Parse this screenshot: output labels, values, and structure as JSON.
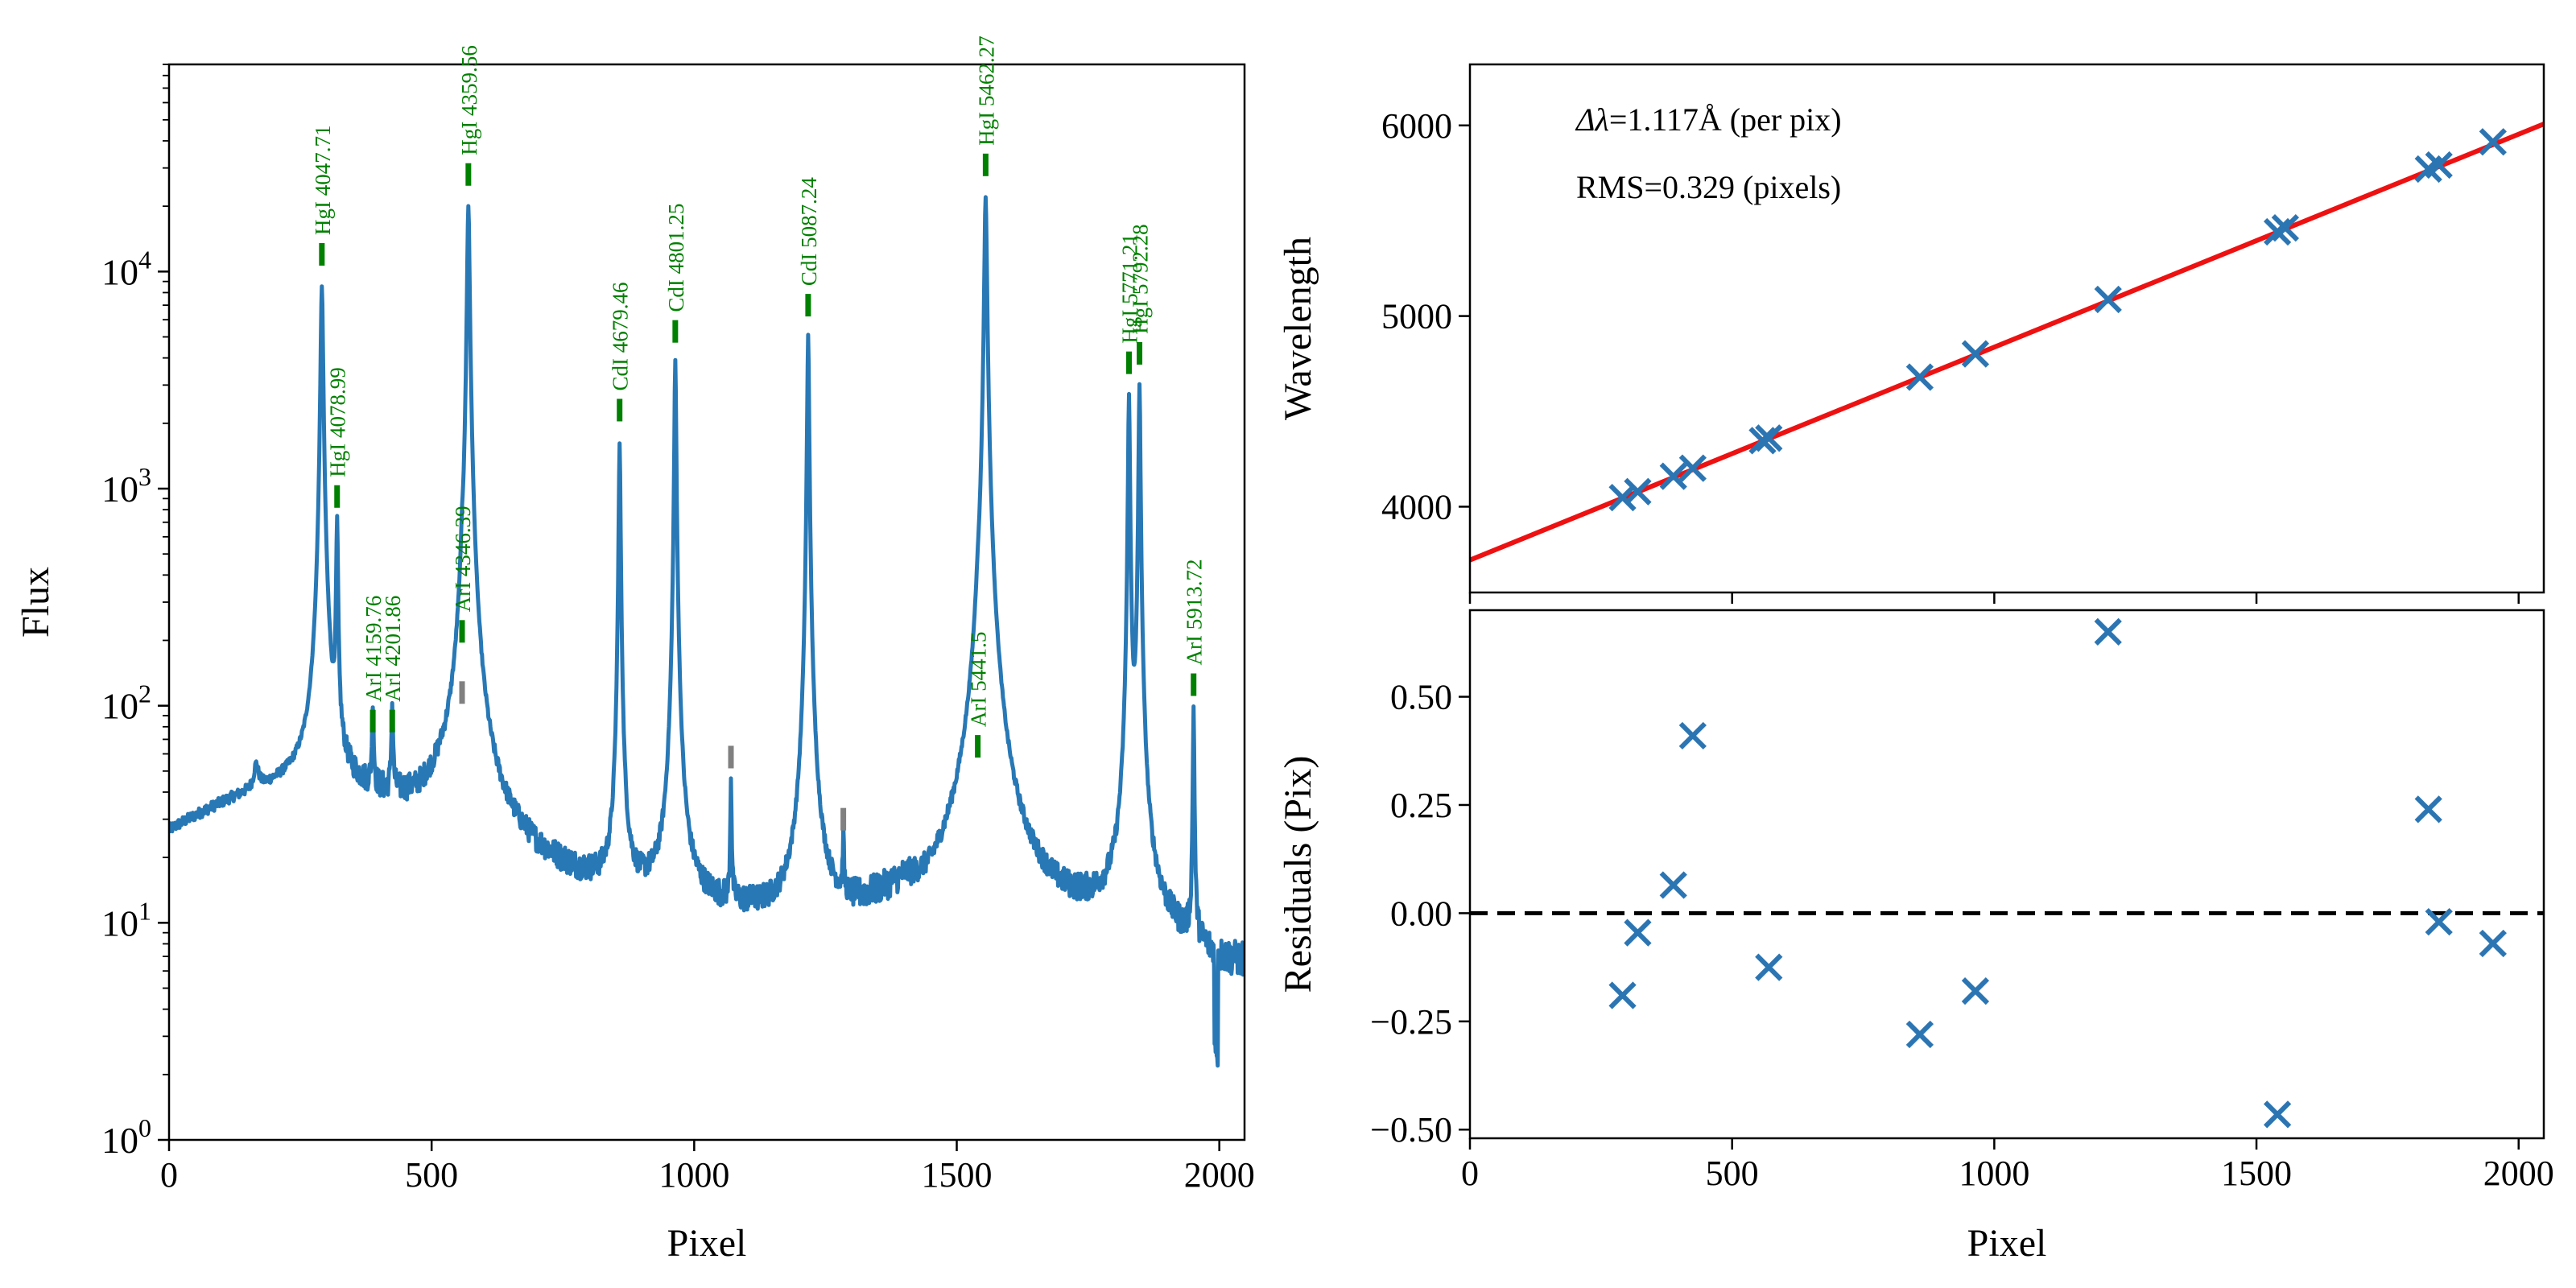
{
  "chart_data": [
    {
      "id": "spectrum",
      "type": "line",
      "xlabel": "Pixel",
      "ylabel": "Flux",
      "xlim": [
        0,
        2048
      ],
      "ylim": [
        1,
        90000
      ],
      "yscale": "log",
      "xticks": [
        0,
        500,
        1000,
        1500,
        2000
      ],
      "yticks": [
        {
          "value": 1,
          "base": "10",
          "exp": "0"
        },
        {
          "value": 10,
          "base": "10",
          "exp": "1"
        },
        {
          "value": 100,
          "base": "10",
          "exp": "2"
        },
        {
          "value": 1000,
          "base": "10",
          "exp": "3"
        },
        {
          "value": 10000,
          "base": "10",
          "exp": "4"
        }
      ],
      "series_color": "#2878b5",
      "continuum": [
        [
          0,
          26
        ],
        [
          60,
          31
        ],
        [
          120,
          36
        ],
        [
          180,
          40
        ],
        [
          240,
          44
        ],
        [
          280,
          46
        ],
        [
          330,
          40
        ],
        [
          400,
          36
        ],
        [
          470,
          33
        ],
        [
          520,
          35
        ],
        [
          600,
          24
        ],
        [
          650,
          21
        ],
        [
          700,
          18
        ],
        [
          780,
          15
        ],
        [
          850,
          13
        ],
        [
          950,
          12
        ],
        [
          1050,
          11
        ],
        [
          1150,
          10
        ],
        [
          1250,
          10
        ],
        [
          1300,
          10
        ],
        [
          1350,
          11
        ],
        [
          1400,
          12
        ],
        [
          1450,
          10
        ],
        [
          1520,
          13
        ],
        [
          1600,
          11
        ],
        [
          1700,
          10
        ],
        [
          1800,
          10
        ],
        [
          1850,
          9
        ],
        [
          1900,
          8
        ],
        [
          2000,
          6
        ],
        [
          2048,
          6
        ]
      ],
      "peaks": [
        {
          "x": 166,
          "peak": 12,
          "w": 5
        },
        {
          "x": 291,
          "peak": 8500,
          "w": 2.2
        },
        {
          "x": 320,
          "peak": 650,
          "w": 1.6
        },
        {
          "x": 388,
          "peak": 60,
          "w": 1.6
        },
        {
          "x": 425,
          "peak": 60,
          "w": 1.6
        },
        {
          "x": 558,
          "peak": 160,
          "w": 2.2
        },
        {
          "x": 570,
          "peak": 20000,
          "w": 2.2
        },
        {
          "x": 858,
          "peak": 1600,
          "w": 1.6
        },
        {
          "x": 964,
          "peak": 3900,
          "w": 1.6
        },
        {
          "x": 1070,
          "peak": 34,
          "w": 1.2
        },
        {
          "x": 1217,
          "peak": 5100,
          "w": 1.6
        },
        {
          "x": 1284,
          "peak": 12,
          "w": 1.2
        },
        {
          "x": 1540,
          "peak": 55,
          "w": 3.5
        },
        {
          "x": 1555,
          "peak": 22000,
          "w": 2.2
        },
        {
          "x": 1828,
          "peak": 2700,
          "w": 1.6
        },
        {
          "x": 1848,
          "peak": 3000,
          "w": 1.6
        },
        {
          "x": 1951,
          "peak": 90,
          "w": 1.3
        }
      ],
      "line_ids": [
        {
          "label": "HgI 4047.71",
          "x": 291,
          "y": 12000
        },
        {
          "label": "HgI 4078.99",
          "x": 320,
          "y": 920
        },
        {
          "label": "ArI 4159.76",
          "x": 388,
          "y": 85
        },
        {
          "label": "ArI 4201.86",
          "x": 425,
          "y": 85
        },
        {
          "label": "ArI 4346.39",
          "x": 558,
          "y": 220
        },
        {
          "label": "HgI 4359.56",
          "x": 570,
          "y": 28000
        },
        {
          "label": "CdI 4679.46",
          "x": 858,
          "y": 2300
        },
        {
          "label": "CdI 4801.25",
          "x": 964,
          "y": 5300
        },
        {
          "label": "CdI 5087.24",
          "x": 1217,
          "y": 7000
        },
        {
          "label": "ArI 5441.5",
          "x": 1540,
          "y": 65
        },
        {
          "label": "HgI 5462.27",
          "x": 1555,
          "y": 31000
        },
        {
          "label": "HgI 5771.21",
          "x": 1828,
          "y": 3800
        },
        {
          "label": "HgI 5792.28",
          "x": 1848,
          "y": 4200
        },
        {
          "label": "ArI 5913.72",
          "x": 1951,
          "y": 125
        }
      ],
      "unmatched_lines": [
        {
          "x": 558,
          "y": 115
        },
        {
          "x": 1070,
          "y": 58
        },
        {
          "x": 1284,
          "y": 30
        }
      ],
      "id_color": "#008000",
      "unmatched_color": "#808080"
    },
    {
      "id": "wavelength_fit",
      "type": "scatter",
      "xlabel": "",
      "ylabel": "Wavelength",
      "xlim": [
        0,
        2048
      ],
      "ylim": [
        3550,
        6320
      ],
      "yticks": [
        4000,
        5000,
        6000
      ],
      "points": [
        [
          291,
          4047.71
        ],
        [
          320,
          4078.99
        ],
        [
          388,
          4159.76
        ],
        [
          425,
          4201.86
        ],
        [
          558,
          4346.39
        ],
        [
          570,
          4359.56
        ],
        [
          858,
          4679.46
        ],
        [
          964,
          4801.25
        ],
        [
          1217,
          5087.24
        ],
        [
          1540,
          5441.5
        ],
        [
          1555,
          5462.27
        ],
        [
          1828,
          5771.21
        ],
        [
          1848,
          5792.28
        ],
        [
          1951,
          5913.72
        ]
      ],
      "fit_line": {
        "intercept": 3720,
        "slope": 1.117,
        "color": "#ee1111"
      },
      "marker_color": "#2c75b3",
      "annotations": [
        {
          "key": "dispersion",
          "prefix": "Δλ",
          "text": "=1.117Å (per pix)"
        },
        {
          "key": "rms",
          "prefix": "",
          "text": "RMS=0.329 (pixels)"
        }
      ]
    },
    {
      "id": "residuals",
      "type": "scatter",
      "xlabel": "Pixel",
      "ylabel": "Residuals (Pix)",
      "xlim": [
        0,
        2048
      ],
      "ylim": [
        -0.52,
        0.7
      ],
      "xticks": [
        0,
        500,
        1000,
        1500,
        2000
      ],
      "yticks": [
        {
          "value": 0.5,
          "label": "0.50"
        },
        {
          "value": 0.25,
          "label": "0.25"
        },
        {
          "value": 0.0,
          "label": "0.00"
        },
        {
          "value": -0.25,
          "label": "−0.25"
        },
        {
          "value": -0.5,
          "label": "−0.50"
        }
      ],
      "points": [
        [
          291,
          -0.19
        ],
        [
          320,
          -0.045
        ],
        [
          388,
          0.065
        ],
        [
          425,
          0.41
        ],
        [
          570,
          -0.125
        ],
        [
          858,
          -0.28
        ],
        [
          964,
          -0.18
        ],
        [
          1217,
          0.65
        ],
        [
          1540,
          -0.465
        ],
        [
          1828,
          0.24
        ],
        [
          1848,
          -0.02
        ],
        [
          1951,
          -0.07
        ]
      ],
      "zero_line": 0,
      "marker_color": "#2c75b3"
    }
  ]
}
